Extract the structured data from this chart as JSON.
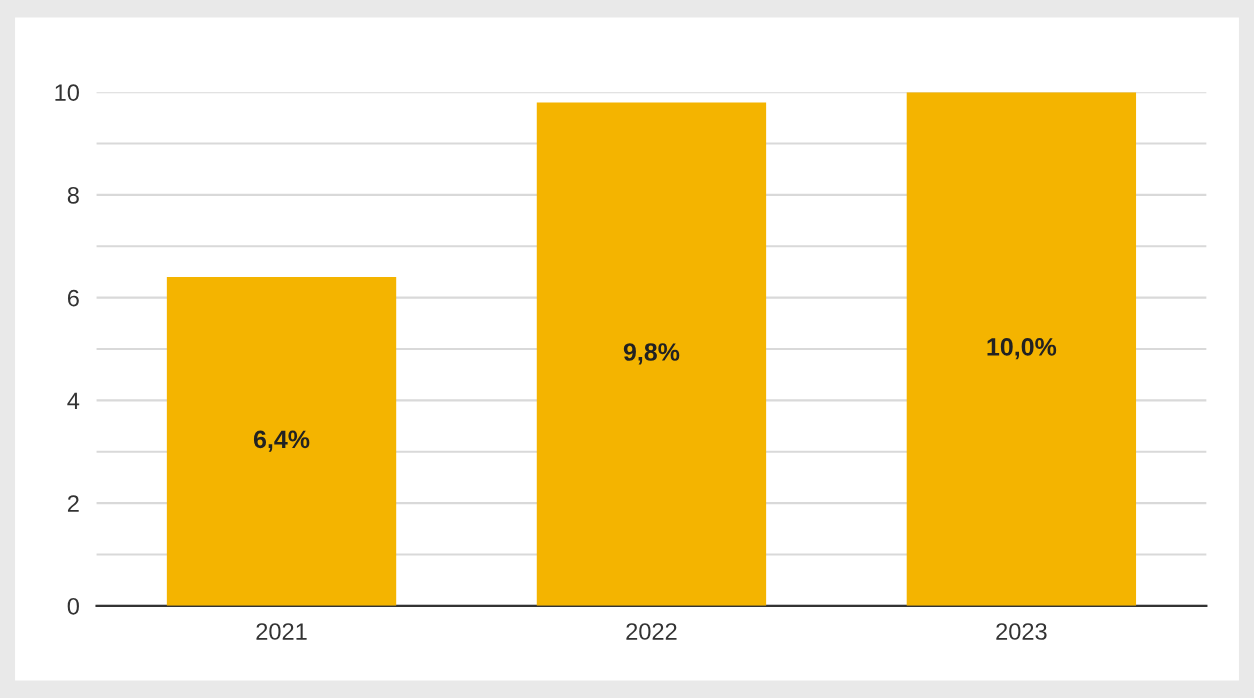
{
  "chart_data": {
    "type": "bar",
    "categories": [
      "2021",
      "2022",
      "2023"
    ],
    "values": [
      6.4,
      9.8,
      10.0
    ],
    "value_labels": [
      "6,4%",
      "9,8%",
      "10,0%"
    ],
    "color": "#f4b400",
    "ylim": [
      0,
      10
    ],
    "yticks": [
      0,
      {
        "value": 1,
        "label": null
      },
      2,
      {
        "value": 3,
        "label": null
      },
      4,
      {
        "value": 5,
        "label": null
      },
      6,
      {
        "value": 7,
        "label": null
      },
      8,
      {
        "value": 9,
        "label": null
      },
      10
    ],
    "grid": "y",
    "legend": false
  }
}
